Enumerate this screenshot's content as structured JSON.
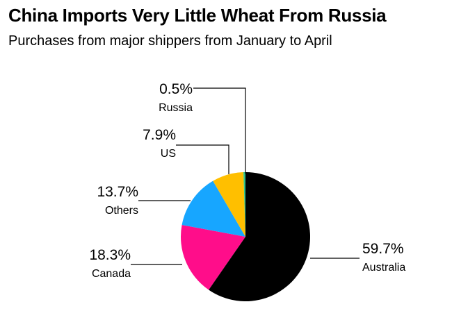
{
  "header": {
    "title": "China Imports Very Little Wheat From Russia",
    "subtitle": "Purchases from major shippers from January to April"
  },
  "chart_data": {
    "type": "pie",
    "title": "China Imports Very Little Wheat From Russia",
    "subtitle": "Purchases from major shippers from January to April",
    "unit": "%",
    "slices": [
      {
        "name": "Australia",
        "value": 59.7,
        "label": "59.7%",
        "color": "#000000"
      },
      {
        "name": "Canada",
        "value": 18.3,
        "label": "18.3%",
        "color": "#ff0d8a"
      },
      {
        "name": "Others",
        "value": 13.7,
        "label": "13.7%",
        "color": "#17a6ff"
      },
      {
        "name": "US",
        "value": 7.9,
        "label": "7.9%",
        "color": "#ffbf00"
      },
      {
        "name": "Russia",
        "value": 0.5,
        "label": "0.5%",
        "color": "#2fc48d"
      }
    ],
    "legend": "none"
  }
}
